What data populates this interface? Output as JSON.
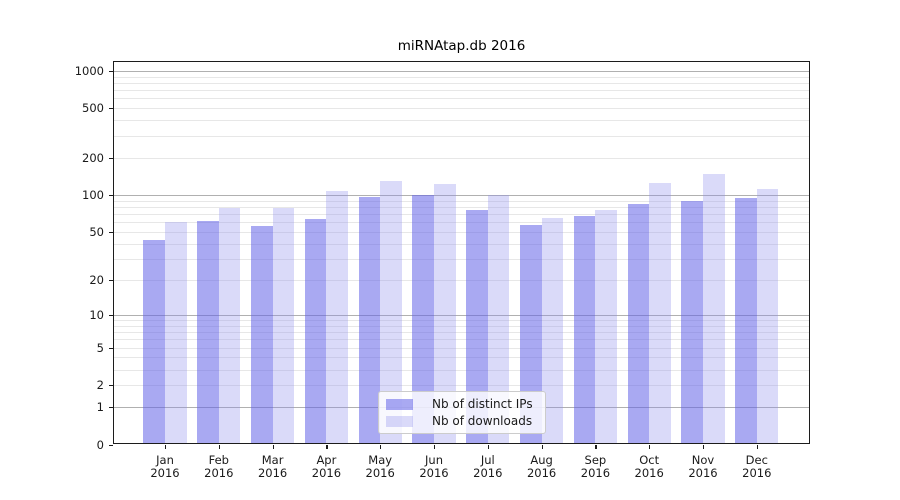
{
  "chart_data": {
    "type": "bar",
    "title": "miRNAtap.db 2016",
    "categories": [
      "Jan",
      "Feb",
      "Mar",
      "Apr",
      "May",
      "Jun",
      "Jul",
      "Aug",
      "Sep",
      "Oct",
      "Nov",
      "Dec"
    ],
    "year_label": "2016",
    "series": [
      {
        "name": "Nb of distinct IPs",
        "color": "rgba(98,98,232,0.55)",
        "values": [
          43,
          61,
          56,
          64,
          97,
          99,
          75,
          57,
          68,
          85,
          89,
          95
        ]
      },
      {
        "name": "Nb of downloads",
        "color": "rgba(140,140,235,0.32)",
        "values": [
          60,
          78,
          78,
          108,
          129,
          122,
          100,
          65,
          76,
          124,
          148,
          111
        ]
      }
    ],
    "y_scale": "log1p",
    "ylim": [
      0,
      1200
    ],
    "y_ticks": [
      1000,
      500,
      200,
      100,
      50,
      20,
      10,
      5,
      2,
      1,
      0
    ],
    "gridlines": {
      "major": [
        1,
        10,
        100,
        1000
      ],
      "minor": [
        2,
        3,
        4,
        5,
        6,
        7,
        8,
        9,
        20,
        30,
        40,
        50,
        60,
        70,
        80,
        90,
        200,
        300,
        400,
        500,
        600,
        700,
        800,
        900
      ]
    },
    "grid": true,
    "legend_position": "lower center",
    "colors": {
      "major_grid": "#b0b0b0",
      "minor_grid": "#e7e7e7",
      "spine": "#1c1c1c",
      "text": "#1a1a1a"
    },
    "xlabel": "",
    "ylabel": ""
  }
}
